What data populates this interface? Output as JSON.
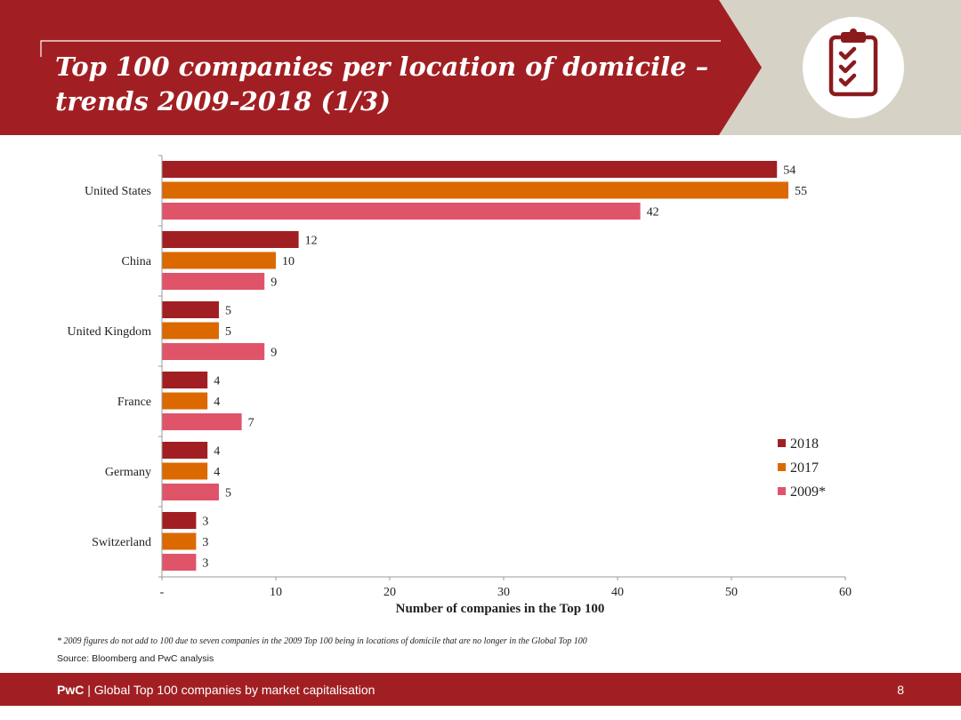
{
  "header": {
    "title_line1": "Top 100 companies per location of domicile –",
    "title_line2": "trends 2009-2018 (1/3)",
    "icon": "clipboard-checklist-icon",
    "colors": {
      "band": "#a11f23",
      "accent": "#d6d3c6",
      "icon_bg": "#ffffff",
      "icon": "#8b1a1d"
    }
  },
  "chart_data": {
    "type": "bar",
    "orientation": "horizontal",
    "categories": [
      "United States",
      "China",
      "United Kingdom",
      "France",
      "Germany",
      "Switzerland"
    ],
    "series": [
      {
        "name": "2018",
        "color": "#a11f23",
        "values": [
          54,
          12,
          5,
          4,
          4,
          3
        ]
      },
      {
        "name": "2017",
        "color": "#dc6900",
        "values": [
          55,
          10,
          5,
          4,
          4,
          3
        ]
      },
      {
        "name": "2009*",
        "color": "#e0546a",
        "values": [
          42,
          9,
          9,
          7,
          5,
          3
        ]
      }
    ],
    "xlim": [
      0,
      60
    ],
    "xticks": [
      "-",
      "10",
      "20",
      "30",
      "40",
      "50",
      "60"
    ],
    "xlabel": "Number of companies in the Top 100",
    "ylabel": "",
    "legend_position": "right",
    "grid": false
  },
  "footnote": "* 2009 figures do not add to 100 due to seven companies in the 2009 Top 100 being in locations of domicile that are no longer in the Global Top 100",
  "source": "Source: Bloomberg and PwC analysis",
  "footer": {
    "brand": "PwC",
    "separator": " | ",
    "text": "Global Top 100 companies by market capitalisation",
    "page_number": "8"
  }
}
